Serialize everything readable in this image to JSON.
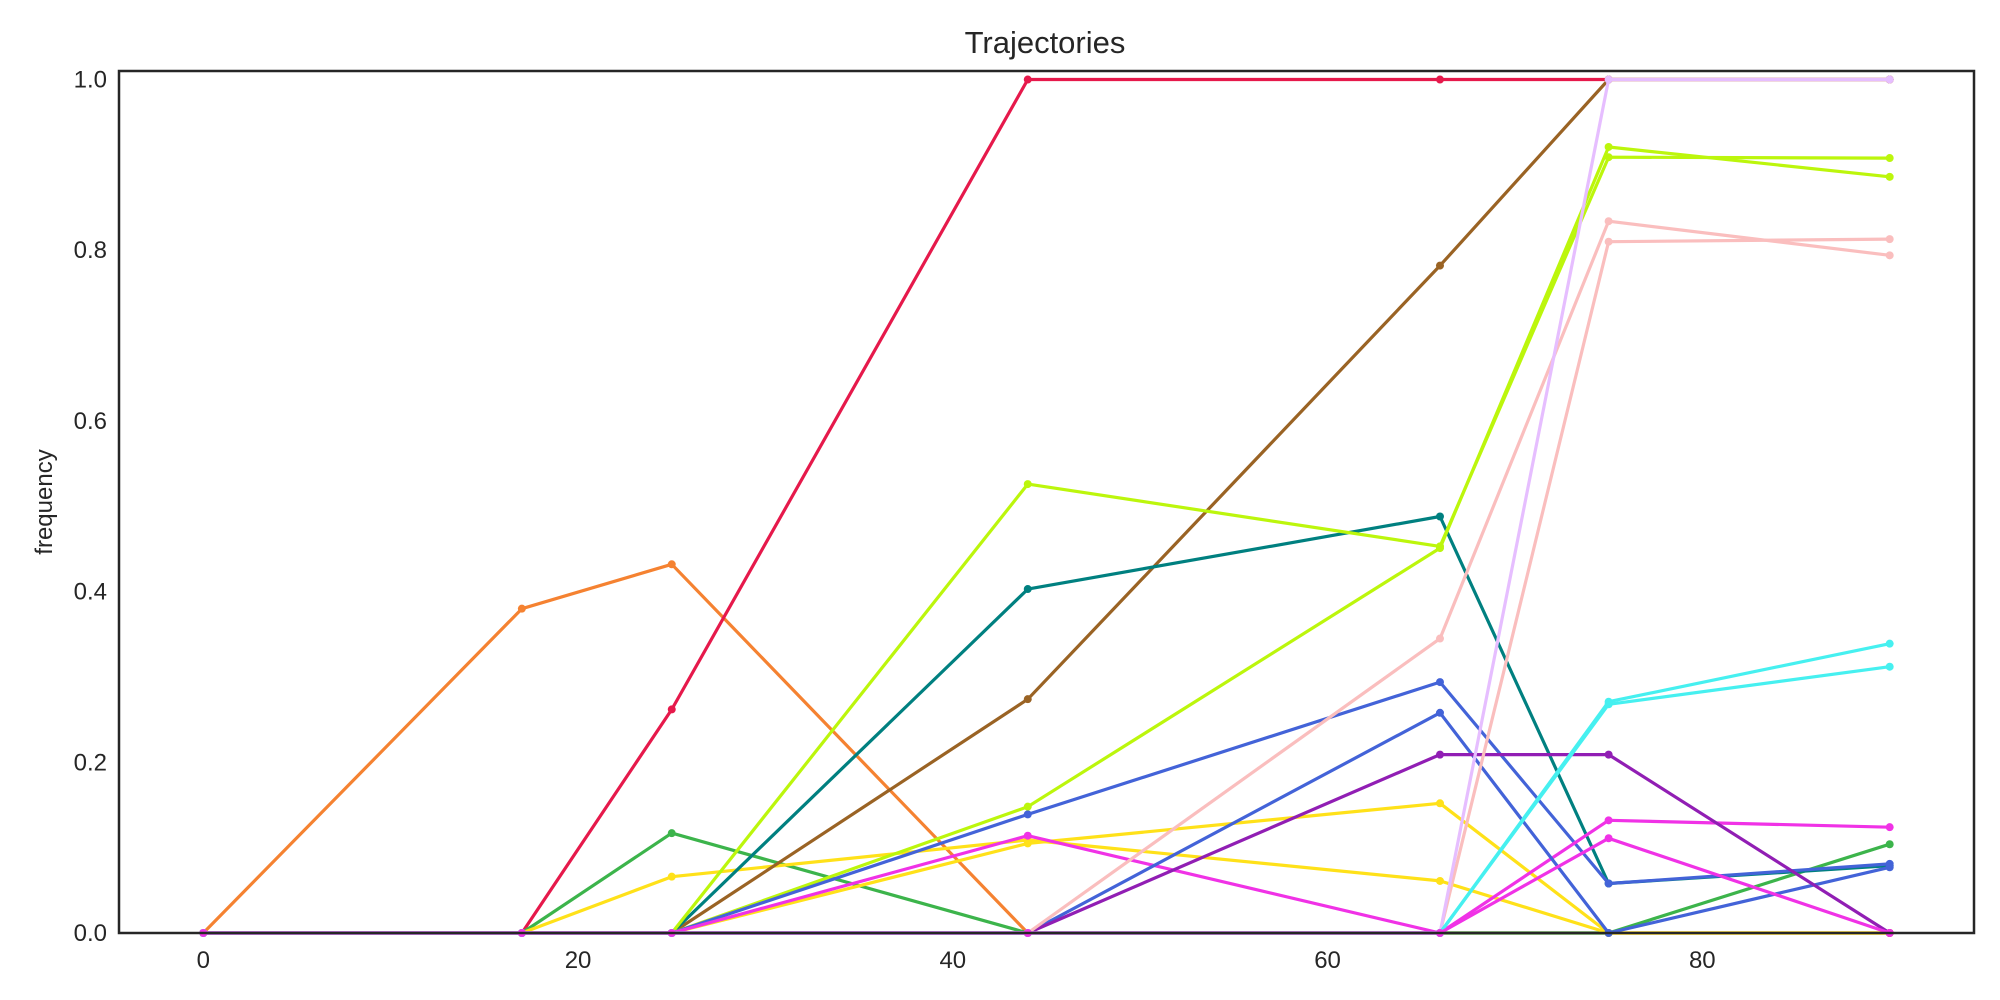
{
  "chart_data": {
    "type": "line",
    "title": "Trajectories",
    "xlabel": "",
    "ylabel": "frequency",
    "xlim": [
      -4.5,
      94.5
    ],
    "ylim": [
      0.0,
      1.01
    ],
    "x_ticks": [
      0,
      20,
      40,
      60,
      80
    ],
    "y_ticks": [
      0.0,
      0.2,
      0.4,
      0.6,
      0.8,
      1.0
    ],
    "x_tick_labels": [
      "0",
      "20",
      "40",
      "60",
      "80"
    ],
    "y_tick_labels": [
      "0.0",
      "0.2",
      "0.4",
      "0.6",
      "0.8",
      "1.0"
    ],
    "grid": false,
    "legend": "none",
    "x": [
      0,
      17,
      25,
      44,
      66,
      75,
      90
    ],
    "series": [
      {
        "color": "#f58231",
        "values": [
          0,
          0.38,
          0.432,
          0,
          0,
          0,
          0
        ]
      },
      {
        "color": "#e6194b",
        "values": [
          0,
          0,
          0.262,
          1.0,
          1.0,
          1.0,
          1.0
        ]
      },
      {
        "color": "#3cb44b",
        "values": [
          0,
          0,
          0.117,
          0,
          0,
          0,
          0.104
        ]
      },
      {
        "color": "#ffe119",
        "values": [
          0,
          0,
          0.066,
          0.109,
          0.061,
          0,
          0
        ]
      },
      {
        "color": "#9a6324",
        "values": [
          0,
          0,
          0,
          0.274,
          0.782,
          1.0,
          1.0
        ]
      },
      {
        "color": "#008080",
        "values": [
          0,
          0,
          0,
          0.403,
          0.488,
          0.058,
          0.079
        ]
      },
      {
        "color": "#bcf60c",
        "values": [
          0,
          0,
          0,
          0.526,
          0.453,
          0.909,
          0.908
        ]
      },
      {
        "color": "#bcf60c",
        "values": [
          0,
          0,
          0,
          0.148,
          0.451,
          0.921,
          0.886
        ]
      },
      {
        "color": "#4363d8",
        "values": [
          0,
          0,
          0,
          0.139,
          0.294,
          0.058,
          0.081
        ]
      },
      {
        "color": "#ffe119",
        "values": [
          0,
          0,
          0,
          0.105,
          0.152,
          0,
          0
        ]
      },
      {
        "color": "#f032e6",
        "values": [
          0,
          0,
          0,
          0.114,
          0,
          0.132,
          0.124
        ]
      },
      {
        "color": "#4363d8",
        "values": [
          0,
          0,
          0,
          0,
          0.258,
          0,
          0.077
        ]
      },
      {
        "color": "#911eb4",
        "values": [
          0,
          0,
          0,
          0,
          0.209,
          0.209,
          0
        ]
      },
      {
        "color": "#fabebe",
        "values": [
          0,
          0,
          0,
          0,
          0.345,
          0.834,
          0.794
        ]
      },
      {
        "color": "#fabebe",
        "values": [
          0,
          0,
          0,
          0,
          0,
          0.81,
          0.813
        ]
      },
      {
        "color": "#e6beff",
        "values": [
          0,
          0,
          0,
          0,
          0,
          1.0,
          1.0
        ]
      },
      {
        "color": "#46f0f0",
        "values": [
          0,
          0,
          0,
          0,
          0,
          0.271,
          0.339
        ]
      },
      {
        "color": "#46f0f0",
        "values": [
          0,
          0,
          0,
          0,
          0,
          0.268,
          0.312
        ]
      },
      {
        "color": "#f032e6",
        "values": [
          0,
          0,
          0,
          0,
          0,
          0.111,
          0
        ]
      }
    ]
  }
}
